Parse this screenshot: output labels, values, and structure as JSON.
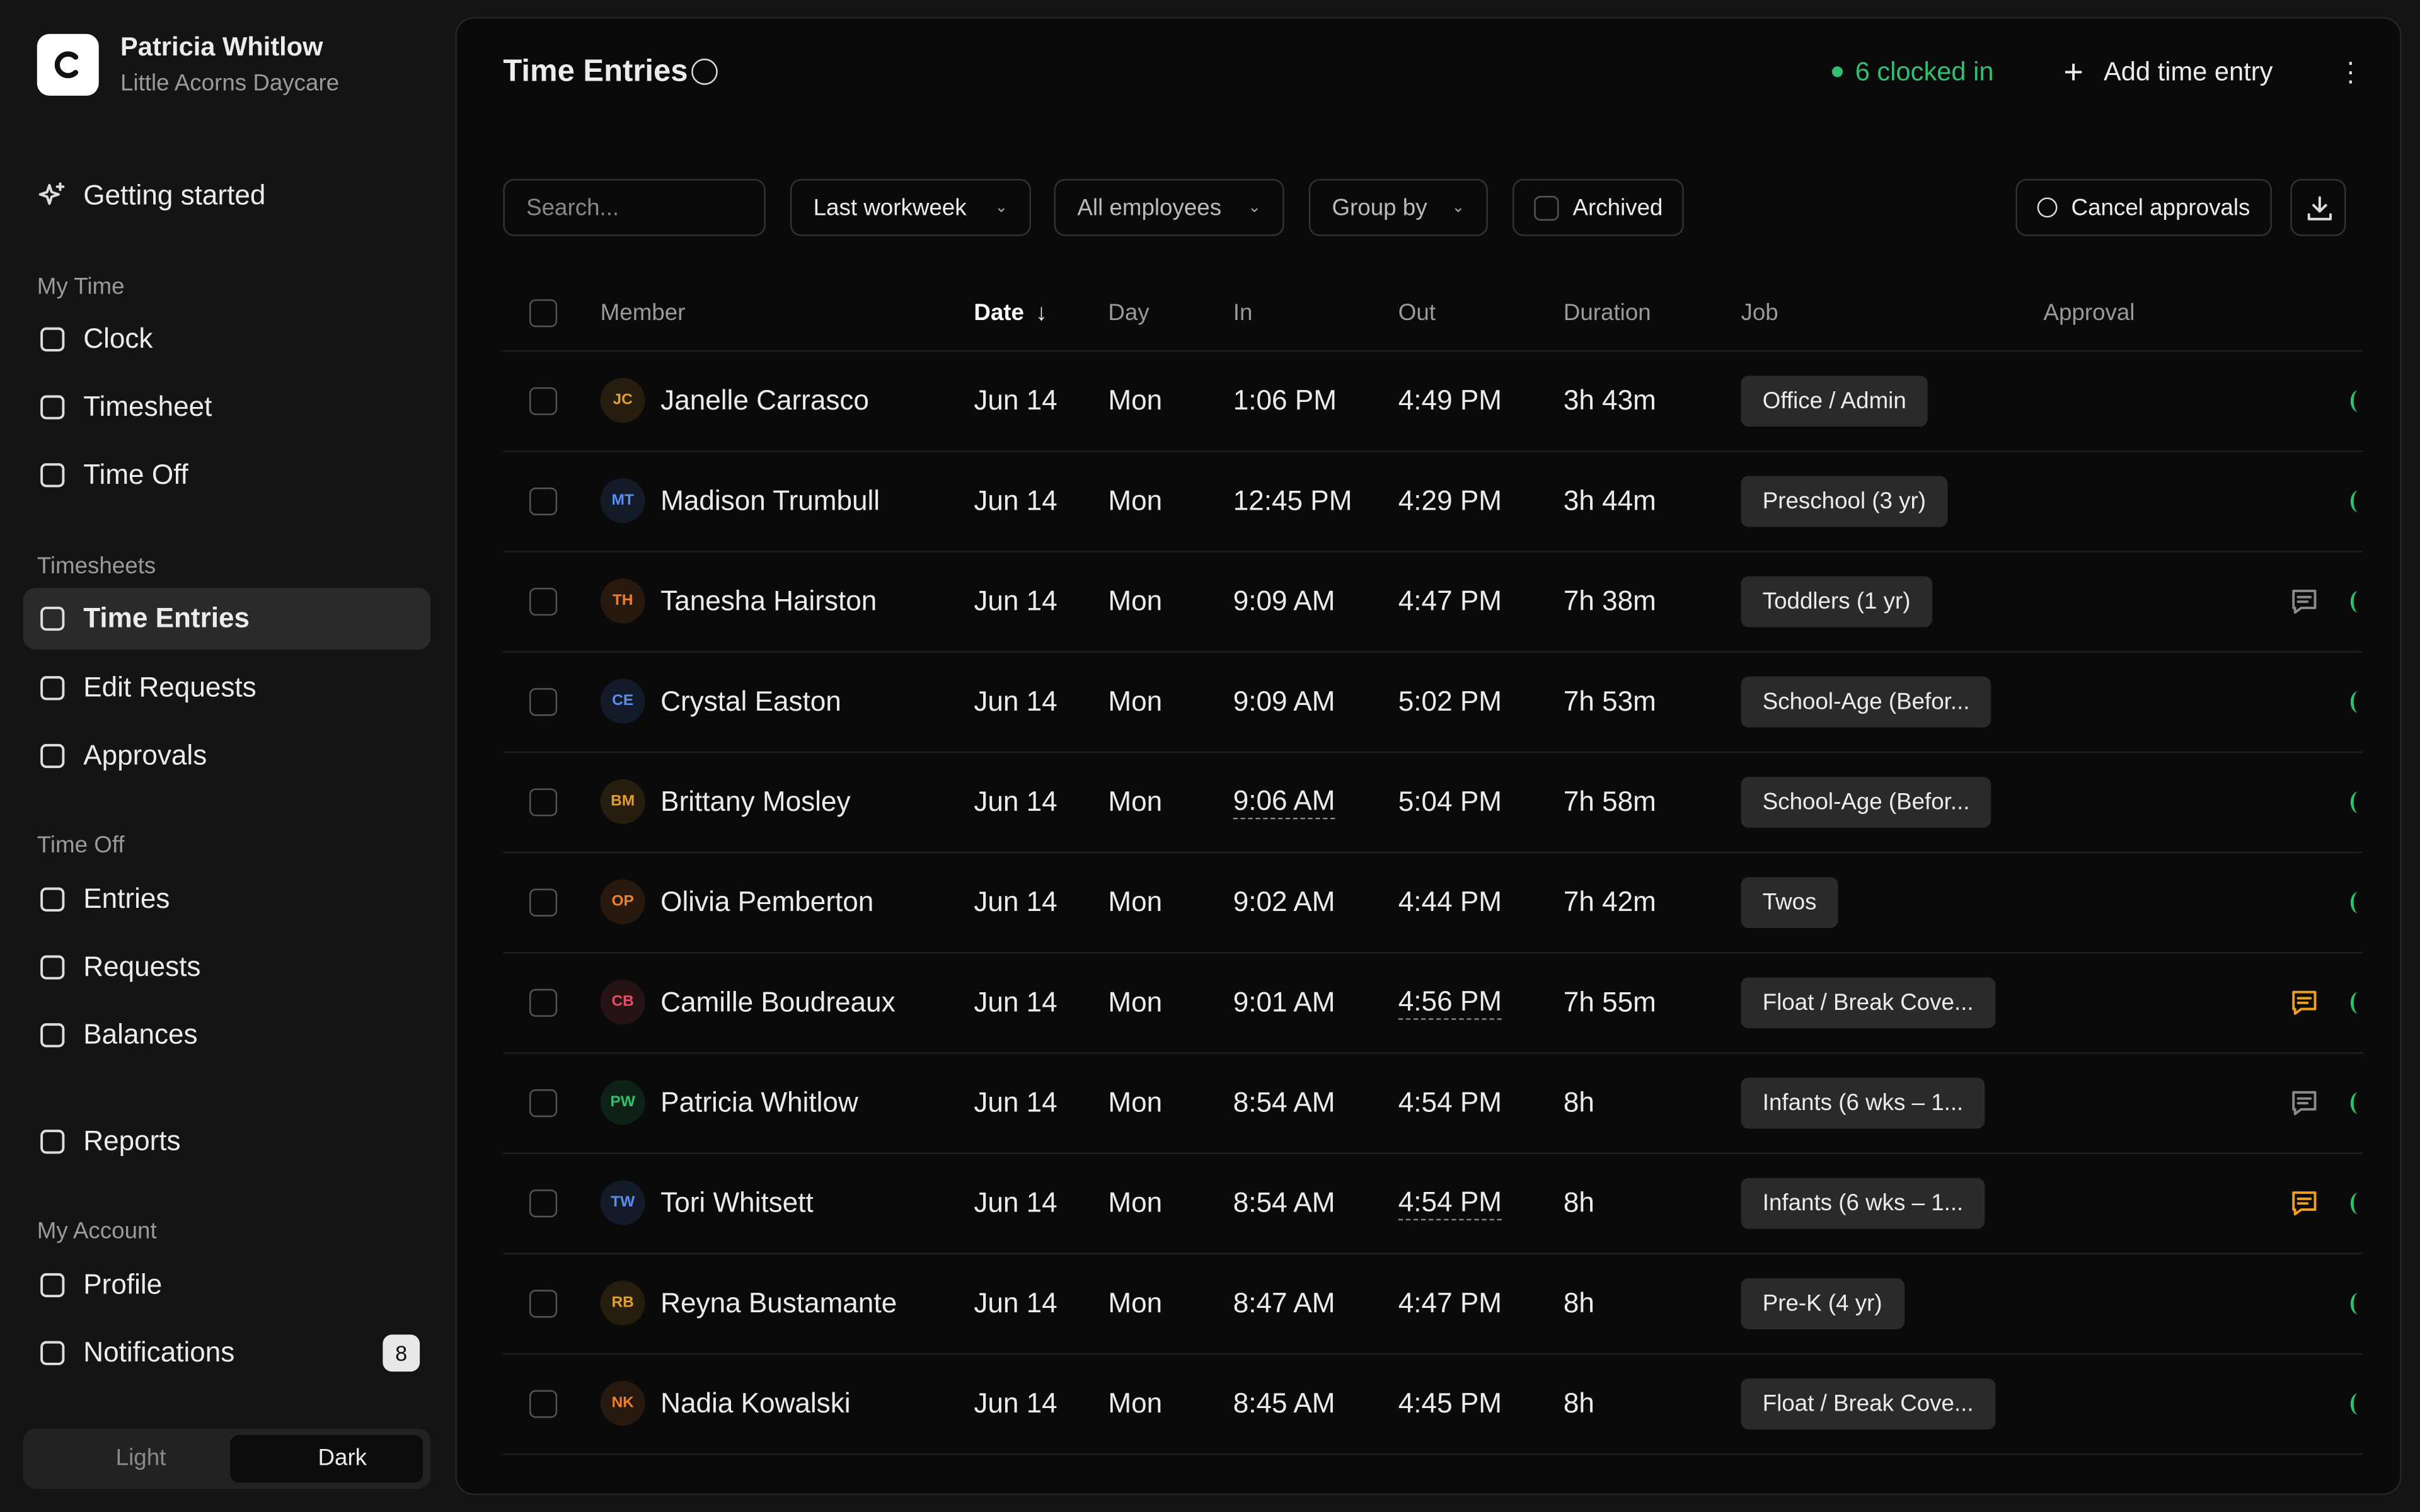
{
  "sidebar": {
    "user": {
      "name": "Patricia Whitlow",
      "org": "Little Acorns Daycare"
    },
    "top": "Getting started",
    "sections": [
      {
        "title": "My Time",
        "items": [
          "Clock",
          "Timesheet",
          "Time Off"
        ]
      },
      {
        "title": "Timesheets",
        "items": [
          "Time Entries",
          "Edit Requests",
          "Approvals"
        ]
      },
      {
        "title": "Time Off",
        "items": [
          "Entries",
          "Requests",
          "Balances"
        ]
      },
      {
        "title": null,
        "items": [
          "Reports"
        ]
      },
      {
        "title": "My Account",
        "items": [
          "Profile",
          "Notifications"
        ]
      }
    ],
    "active": "Time Entries",
    "notifications_badge": "8",
    "theme": {
      "light": "Light",
      "dark": "Dark",
      "active": "dark"
    }
  },
  "header": {
    "title": "Time Entries",
    "clocked_in": "6 clocked in",
    "add": "Add time entry"
  },
  "filters": {
    "search": "Search...",
    "range": "Last workweek",
    "employees": "All employees",
    "group": "Group by",
    "archived": "Archived",
    "cancel": "Cancel approvals"
  },
  "table": {
    "columns": [
      "Member",
      "Date",
      "Day",
      "In",
      "Out",
      "Duration",
      "Job",
      "Approval"
    ],
    "sorted": "Date",
    "rows": [
      {
        "initials": "JC",
        "avatar_color": "#e0a030",
        "member": "Janelle Carrasco",
        "date": "Jun 14",
        "day": "Mon",
        "in": "1:06 PM",
        "out": "4:49 PM",
        "duration": "3h 43m",
        "job": "Office / Admin"
      },
      {
        "initials": "MT",
        "avatar_color": "#5b8def",
        "member": "Madison Trumbull",
        "date": "Jun 14",
        "day": "Mon",
        "in": "12:45 PM",
        "out": "4:29 PM",
        "duration": "3h 44m",
        "job": "Preschool (3 yr)"
      },
      {
        "initials": "TH",
        "avatar_color": "#e8822f",
        "member": "Tanesha Hairston",
        "date": "Jun 14",
        "day": "Mon",
        "in": "9:09 AM",
        "out": "4:47 PM",
        "duration": "7h 38m",
        "job": "Toddlers (1 yr)",
        "comment_color": "#8a8a8a"
      },
      {
        "initials": "CE",
        "avatar_color": "#5b8def",
        "member": "Crystal Easton",
        "date": "Jun 14",
        "day": "Mon",
        "in": "9:09 AM",
        "out": "5:02 PM",
        "duration": "7h 53m",
        "job": "School-Age (Befor..."
      },
      {
        "initials": "BM",
        "avatar_color": "#e0a030",
        "member": "Brittany Mosley",
        "date": "Jun 14",
        "day": "Mon",
        "in": "9:06 AM",
        "out": "5:04 PM",
        "duration": "7h 58m",
        "job": "School-Age (Befor...",
        "edited": "in"
      },
      {
        "initials": "OP",
        "avatar_color": "#e8822f",
        "member": "Olivia Pemberton",
        "date": "Jun 14",
        "day": "Mon",
        "in": "9:02 AM",
        "out": "4:44 PM",
        "duration": "7h 42m",
        "job": "Twos"
      },
      {
        "initials": "CB",
        "avatar_color": "#e0506a",
        "member": "Camille Boudreaux",
        "date": "Jun 14",
        "day": "Mon",
        "in": "9:01 AM",
        "out": "4:56 PM",
        "duration": "7h 55m",
        "job": "Float / Break Cove...",
        "edited": "out",
        "comment_color": "#f0a020"
      },
      {
        "initials": "PW",
        "avatar_color": "#2fbf71",
        "member": "Patricia Whitlow",
        "date": "Jun 14",
        "day": "Mon",
        "in": "8:54 AM",
        "out": "4:54 PM",
        "duration": "8h",
        "job": "Infants (6 wks – 1...",
        "comment_color": "#8a8a8a"
      },
      {
        "initials": "TW",
        "avatar_color": "#5b8def",
        "member": "Tori Whitsett",
        "date": "Jun 14",
        "day": "Mon",
        "in": "8:54 AM",
        "out": "4:54 PM",
        "duration": "8h",
        "job": "Infants (6 wks – 1...",
        "edited": "out",
        "comment_color": "#f0a020"
      },
      {
        "initials": "RB",
        "avatar_color": "#e0a030",
        "member": "Reyna Bustamante",
        "date": "Jun 14",
        "day": "Mon",
        "in": "8:47 AM",
        "out": "4:47 PM",
        "duration": "8h",
        "job": "Pre-K (4 yr)"
      },
      {
        "initials": "NK",
        "avatar_color": "#e8822f",
        "member": "Nadia Kowalski",
        "date": "Jun 14",
        "day": "Mon",
        "in": "8:45 AM",
        "out": "4:45 PM",
        "duration": "8h",
        "job": "Float / Break Cove..."
      }
    ]
  }
}
